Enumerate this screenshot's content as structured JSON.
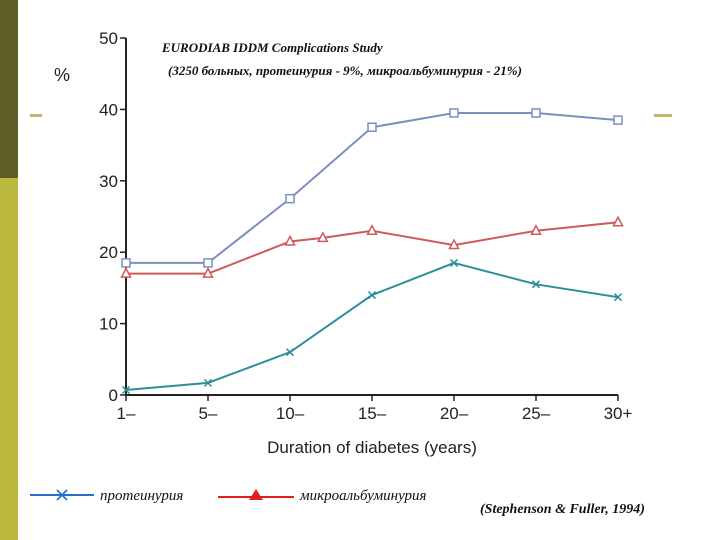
{
  "chart_data": {
    "type": "line",
    "title": "EURODIAB IDDM Complications Study",
    "subtitle": "(3250 больных, протеинурия - 9%, микроальбуминурия - 21%)",
    "xlabel": "Duration of diabetes (years)",
    "ylabel": "%",
    "ylim": [
      0,
      50
    ],
    "yticks": [
      0,
      10,
      20,
      30,
      40,
      50
    ],
    "xticks": [
      "1–",
      "5–",
      "10–",
      "15–",
      "20–",
      "25–",
      "30+"
    ],
    "grid": false,
    "series": [
      {
        "name": "",
        "color": "#7b8fbf",
        "marker": "square",
        "x": [
          0,
          1,
          2,
          3,
          4,
          5,
          6
        ],
        "y": [
          18.5,
          18.5,
          27.5,
          37.5,
          39.5,
          39.5,
          38.5
        ]
      },
      {
        "name": "микроальбуминурия",
        "color": "#d05a5a",
        "marker": "triangle",
        "x": [
          0,
          1,
          2,
          2.4,
          3,
          4,
          5,
          6
        ],
        "y": [
          17,
          17,
          21.5,
          22,
          23,
          21,
          23,
          24.2
        ]
      },
      {
        "name": "протеинурия",
        "color": "#2a8f9a",
        "marker": "x",
        "x": [
          0,
          1,
          2,
          3,
          4,
          5,
          6
        ],
        "y": [
          0.7,
          1.7,
          6,
          14,
          18.5,
          15.5,
          13.7
        ]
      }
    ]
  },
  "legend": {
    "items": [
      {
        "label": "протеинурия",
        "color": "#2a6ed0",
        "marker": "x"
      },
      {
        "label": "микроальбуминурия",
        "color": "#e02020",
        "marker": "triangle"
      }
    ]
  },
  "source": "(Stephenson & Fuller, 1994)"
}
